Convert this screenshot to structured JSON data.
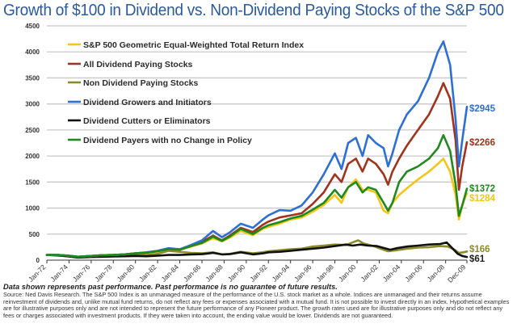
{
  "chart_data": {
    "type": "line",
    "title": "Growth of $100 in Dividend vs. Non-Dividend Paying Stocks of the S&P 500",
    "xlabel": "",
    "ylabel": "",
    "ylim": [
      0,
      4500
    ],
    "yticks": [
      0,
      500,
      1000,
      1500,
      2000,
      2500,
      3000,
      3500,
      4000,
      4500
    ],
    "xlim": [
      1972.0,
      2009.92
    ],
    "xtick_labels": [
      "Jan-72",
      "Jan-74",
      "Jan-76",
      "Jan-78",
      "Jan-80",
      "Jan-82",
      "Jan-84",
      "Jan-86",
      "Jan-88",
      "Jan-90",
      "Jan-92",
      "Jan-94",
      "Jan-96",
      "Jan-98",
      "Jan-00",
      "Jan-02",
      "Jan-04",
      "Jan-06",
      "Jan-08",
      "Dec-09"
    ],
    "xtick_values": [
      1972,
      1974,
      1976,
      1978,
      1980,
      1982,
      1984,
      1986,
      1988,
      1990,
      1992,
      1994,
      1996,
      1998,
      2000,
      2002,
      2004,
      2006,
      2008,
      2009.92
    ],
    "grid": true,
    "legend_position": "top-left",
    "series": [
      {
        "name": "S&P 500 Geometric Equal-Weighted Total Return Index",
        "color": "#f5c518",
        "end_label": "$1284",
        "x": [
          1972,
          1973,
          1974,
          1974.8,
          1976,
          1977,
          1978,
          1979,
          1980,
          1981,
          1982,
          1983,
          1984,
          1985,
          1986,
          1987,
          1987.8,
          1988.5,
          1989.5,
          1990.6,
          1991.5,
          1992,
          1993,
          1994,
          1995,
          1996,
          1997,
          1998,
          1998.6,
          1999.2,
          1999.9,
          2000.5,
          2001,
          2001.7,
          2002.4,
          2002.8,
          2003.2,
          2003.8,
          2004.5,
          2005.5,
          2006.5,
          2007.3,
          2007.8,
          2008.4,
          2008.9,
          2009.2,
          2009.5,
          2009.92
        ],
        "values": [
          100,
          100,
          85,
          65,
          80,
          95,
          100,
          110,
          130,
          140,
          165,
          210,
          200,
          260,
          320,
          420,
          360,
          430,
          560,
          480,
          600,
          640,
          700,
          780,
          820,
          930,
          1060,
          1250,
          1100,
          1400,
          1550,
          1350,
          1350,
          1300,
          950,
          900,
          1100,
          1250,
          1380,
          1550,
          1700,
          1850,
          1950,
          1700,
          1250,
          780,
          1050,
          1284
        ]
      },
      {
        "name": "All Dividend Paying Stocks",
        "color": "#a0321e",
        "end_label": "$2266",
        "x": [
          1972,
          1973,
          1974,
          1974.8,
          1976,
          1977,
          1978,
          1979,
          1980,
          1981,
          1982,
          1983,
          1984,
          1985,
          1986,
          1987,
          1987.8,
          1988.5,
          1989.5,
          1990.6,
          1991.5,
          1992,
          1993,
          1994,
          1995,
          1996,
          1997,
          1998,
          1998.6,
          1999.2,
          1999.9,
          2000.5,
          2001,
          2001.7,
          2002.4,
          2002.8,
          2003.2,
          2003.8,
          2004.5,
          2005.5,
          2006.5,
          2007.3,
          2007.8,
          2008.4,
          2008.9,
          2009.2,
          2009.5,
          2009.92
        ],
        "values": [
          100,
          100,
          85,
          65,
          80,
          95,
          100,
          110,
          130,
          145,
          170,
          220,
          200,
          270,
          350,
          470,
          380,
          470,
          620,
          540,
          680,
          740,
          820,
          860,
          900,
          1080,
          1300,
          1650,
          1500,
          1850,
          1950,
          1700,
          1950,
          1850,
          1650,
          1450,
          1700,
          1950,
          2200,
          2500,
          2800,
          3150,
          3400,
          3100,
          2300,
          1350,
          1800,
          2266
        ]
      },
      {
        "name": "Non Dividend Paying Stocks",
        "color": "#8c8a2a",
        "end_label": "$166",
        "x": [
          1972,
          1973,
          1974,
          1974.8,
          1976,
          1977,
          1978,
          1979,
          1980,
          1981,
          1982,
          1983,
          1984,
          1985,
          1986,
          1987,
          1987.8,
          1988.5,
          1989.5,
          1990.6,
          1991.5,
          1992,
          1993,
          1994,
          1995,
          1996,
          1997,
          1998,
          1999,
          1999.6,
          2000.1,
          2000.6,
          2001.5,
          2002.4,
          2002.8,
          2003.5,
          2004.5,
          2005.5,
          2006.5,
          2007.5,
          2008.2,
          2008.8,
          2009.2,
          2009.6,
          2009.92
        ],
        "values": [
          100,
          95,
          75,
          55,
          65,
          75,
          85,
          95,
          110,
          100,
          120,
          180,
          160,
          140,
          130,
          150,
          110,
          120,
          160,
          130,
          150,
          170,
          190,
          210,
          220,
          260,
          280,
          300,
          290,
          340,
          380,
          320,
          270,
          200,
          170,
          190,
          220,
          240,
          250,
          270,
          260,
          200,
          140,
          150,
          166
        ]
      },
      {
        "name": "Dividend Growers and Initiators",
        "color": "#2e6fd6",
        "end_label": "$2945",
        "x": [
          1972,
          1973,
          1974,
          1974.8,
          1976,
          1977,
          1978,
          1979,
          1980,
          1981,
          1982,
          1983,
          1984,
          1985,
          1986,
          1987,
          1987.8,
          1988.5,
          1989.5,
          1990.6,
          1991.5,
          1992,
          1993,
          1994,
          1995,
          1996,
          1997,
          1998,
          1998.6,
          1999.2,
          1999.9,
          2000.5,
          2001,
          2001.7,
          2002.4,
          2002.8,
          2003.2,
          2003.8,
          2004.5,
          2005.5,
          2006.5,
          2007.3,
          2007.8,
          2008.4,
          2008.9,
          2009.2,
          2009.5,
          2009.92
        ],
        "values": [
          100,
          100,
          85,
          65,
          80,
          95,
          100,
          110,
          130,
          150,
          180,
          230,
          210,
          290,
          380,
          560,
          440,
          530,
          700,
          620,
          780,
          860,
          960,
          950,
          1050,
          1300,
          1650,
          2050,
          1750,
          2250,
          2350,
          2000,
          2400,
          2250,
          2150,
          1800,
          2050,
          2500,
          2800,
          3050,
          3500,
          4000,
          4200,
          3750,
          2700,
          1800,
          2300,
          2945
        ]
      },
      {
        "name": "Dividend Cutters or Eliminators",
        "color": "#111111",
        "end_label": "$61",
        "x": [
          1972,
          1973,
          1974,
          1974.8,
          1976,
          1977,
          1978,
          1979,
          1980,
          1981,
          1982,
          1983,
          1984,
          1985,
          1986,
          1987,
          1987.8,
          1988.5,
          1989.5,
          1990.6,
          1991.5,
          1992,
          1993,
          1994,
          1995,
          1996,
          1997,
          1998,
          1999,
          1999.6,
          2000.3,
          2001,
          2001.8,
          2002.5,
          2003,
          2003.6,
          2004.5,
          2005.5,
          2006.5,
          2007.5,
          2008.1,
          2008.6,
          2009.1,
          2009.5,
          2009.92
        ],
        "values": [
          100,
          90,
          70,
          50,
          60,
          65,
          70,
          75,
          80,
          75,
          85,
          100,
          100,
          110,
          115,
          140,
          110,
          115,
          150,
          110,
          130,
          150,
          160,
          180,
          200,
          220,
          240,
          270,
          300,
          280,
          300,
          280,
          270,
          230,
          200,
          230,
          260,
          280,
          300,
          310,
          340,
          230,
          120,
          80,
          61
        ]
      },
      {
        "name": "Dividend Payers with no Change in Policy",
        "color": "#1e8a1e",
        "end_label": "$1372",
        "x": [
          1972,
          1973,
          1974,
          1974.8,
          1976,
          1977,
          1978,
          1979,
          1980,
          1981,
          1982,
          1983,
          1984,
          1985,
          1986,
          1987,
          1987.8,
          1988.5,
          1989.5,
          1990.6,
          1991.5,
          1992,
          1993,
          1994,
          1995,
          1996,
          1997,
          1998,
          1998.6,
          1999.2,
          1999.9,
          2000.5,
          2001,
          2001.7,
          2002.4,
          2002.8,
          2003.2,
          2003.8,
          2004.5,
          2005.5,
          2006.5,
          2007.3,
          2007.8,
          2008.4,
          2008.9,
          2009.2,
          2009.5,
          2009.92
        ],
        "values": [
          100,
          100,
          85,
          65,
          80,
          95,
          100,
          110,
          130,
          145,
          170,
          210,
          200,
          270,
          330,
          450,
          370,
          450,
          600,
          500,
          620,
          670,
          730,
          800,
          850,
          970,
          1100,
          1350,
          1200,
          1400,
          1500,
          1300,
          1400,
          1350,
          1100,
          950,
          1100,
          1500,
          1700,
          1800,
          1950,
          2150,
          2400,
          2100,
          1450,
          850,
          1050,
          1372
        ]
      }
    ]
  },
  "header": {
    "title": "Growth of $100 in Dividend vs. Non-Dividend Paying Stocks of the S&P 500"
  },
  "footer": {
    "disclaimer_head": "Data shown represents past performance. Past performance is no guarantee of future results.",
    "disclaimer_body": "Source: Ned Davis Research. The S&P 500 Index is an unmanaged measure of the performance of the U.S. stock market as a whole. Indices are unmanaged and their returns assume reinvestment of dividends and, unlike mutual fund returns, do not reflect any fees or expenses associated with a mutual fund. It is not possible to invest directly in an index. Hypothetical examples are for illustrative purposes only and are not intended to represent the future performance of any Pioneer product.  The growth rates used are for illustrative purposes only and do not reflect any fees or charges associated with investment products. If they were taken into account, the ending value would be lower. Dividends are not guaranteed."
  }
}
